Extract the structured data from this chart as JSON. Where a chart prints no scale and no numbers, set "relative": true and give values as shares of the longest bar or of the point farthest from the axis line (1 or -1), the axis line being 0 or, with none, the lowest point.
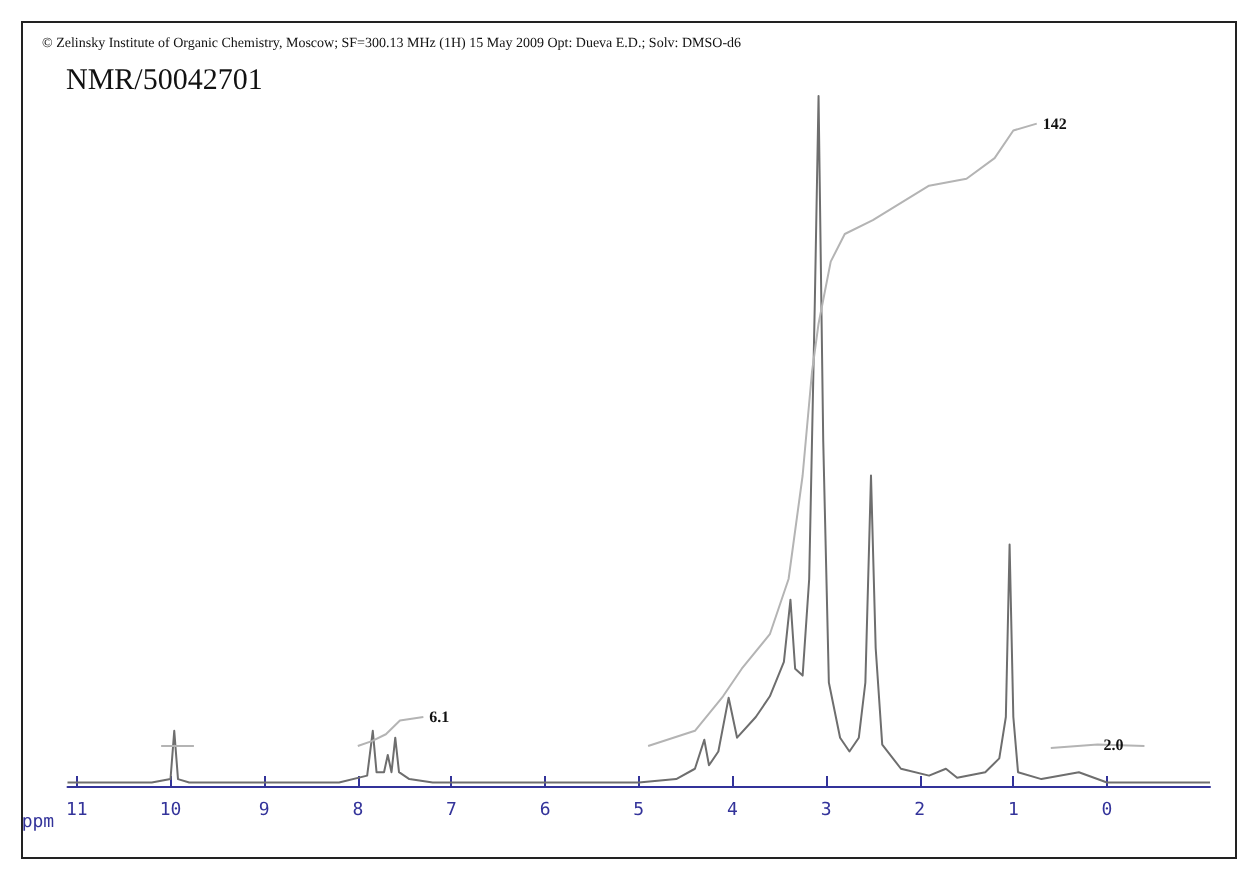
{
  "chart_data": {
    "type": "line",
    "title": "NMR/50042701",
    "subtitle": "© Zelinsky Institute of Organic Chemistry, Moscow; SF=300.13 MHz (1H) 15 May 2009 Opt: Dueva E.D.; Solv: DMSO-d6",
    "xlabel": "ppm",
    "relative": true,
    "xlim": [
      11.1,
      -1.1
    ],
    "xticks": [
      11,
      10,
      9,
      8,
      7,
      6,
      5,
      4,
      3,
      2,
      1,
      0
    ],
    "grid": false,
    "marker": "none",
    "line_style": "solid",
    "series": [
      {
        "color": "#6e6e6e",
        "x": [
          11.1,
          10.2,
          10.0,
          9.96,
          9.92,
          9.8,
          8.2,
          7.9,
          7.84,
          7.8,
          7.72,
          7.68,
          7.64,
          7.6,
          7.56,
          7.45,
          7.2,
          5.0,
          4.6,
          4.4,
          4.3,
          4.25,
          4.15,
          4.04,
          3.95,
          3.75,
          3.6,
          3.45,
          3.38,
          3.33,
          3.25,
          3.18,
          3.12,
          3.08,
          3.03,
          2.97,
          2.85,
          2.75,
          2.65,
          2.58,
          2.52,
          2.47,
          2.4,
          2.2,
          1.9,
          1.72,
          1.6,
          1.3,
          1.15,
          1.08,
          1.04,
          1.0,
          0.95,
          0.7,
          0.3,
          0.0,
          -1.1
        ],
        "values": [
          0.005,
          0.005,
          0.01,
          0.08,
          0.01,
          0.005,
          0.005,
          0.015,
          0.08,
          0.02,
          0.02,
          0.045,
          0.02,
          0.07,
          0.02,
          0.01,
          0.005,
          0.005,
          0.01,
          0.025,
          0.067,
          0.03,
          0.05,
          0.128,
          0.07,
          0.1,
          0.13,
          0.18,
          0.27,
          0.17,
          0.16,
          0.3,
          0.7,
          1.0,
          0.5,
          0.15,
          0.07,
          0.05,
          0.07,
          0.15,
          0.45,
          0.2,
          0.06,
          0.025,
          0.015,
          0.025,
          0.012,
          0.02,
          0.04,
          0.1,
          0.35,
          0.1,
          0.02,
          0.01,
          0.02,
          0.005,
          0.005
        ]
      },
      {
        "color": "#b4b4b4",
        "x": [
          10.1,
          9.75,
          9.0,
          8.0,
          7.85,
          7.7,
          7.55,
          7.3,
          6.0,
          4.9,
          4.4,
          4.1,
          3.9,
          3.6,
          3.4,
          3.25,
          3.15,
          3.08,
          2.95,
          2.8,
          2.5,
          1.9,
          1.5,
          1.2,
          1.0,
          0.75,
          0.65,
          0.6,
          0.1,
          -0.4
        ],
        "values": [
          0.058,
          0.058,
          null,
          0.058,
          0.065,
          0.075,
          0.095,
          0.1,
          null,
          0.058,
          0.08,
          0.13,
          0.17,
          0.22,
          0.3,
          0.45,
          0.6,
          0.67,
          0.76,
          0.8,
          0.82,
          0.87,
          0.88,
          0.91,
          0.95,
          0.96,
          null,
          0.055,
          0.06,
          0.058
        ]
      }
    ],
    "annotations": [
      {
        "text": "6.1",
        "x": 7.3,
        "y": 0.1
      },
      {
        "text": "142",
        "x": 0.75,
        "y": 0.96
      },
      {
        "text": "2.0",
        "x": 0.1,
        "y": 0.06
      }
    ]
  }
}
